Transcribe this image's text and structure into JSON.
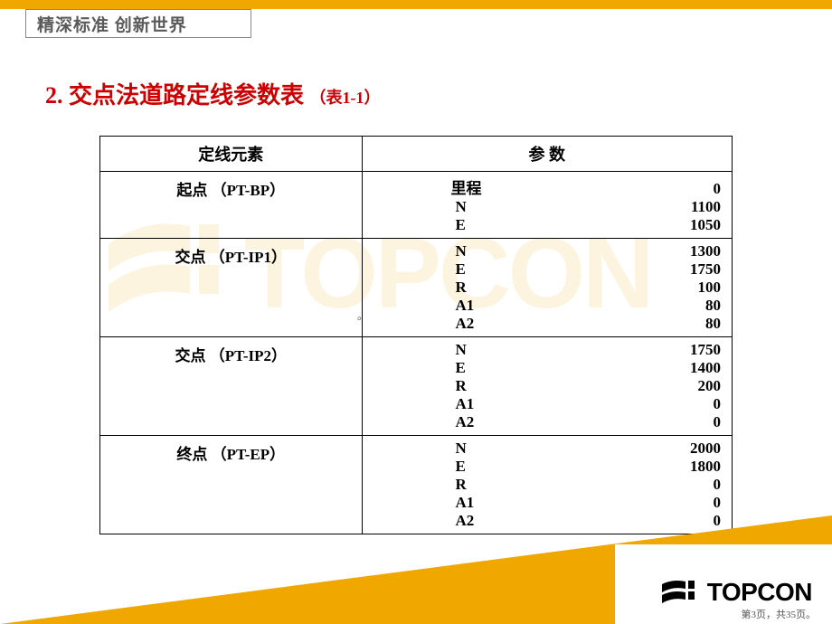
{
  "colors": {
    "brand_orange": "#f0a800",
    "title_red": "#cc0000",
    "border": "#000000",
    "motto_text": "#5a5a5a",
    "page_bg": "#ffffff"
  },
  "motto": "精深标准  创新世界",
  "title": {
    "number": "2.",
    "main": "交点法道路定线参数表",
    "sub": "（表1-1）"
  },
  "table": {
    "headers": {
      "element": "定线元素",
      "params": "参    数"
    },
    "rows": [
      {
        "element": "起点 （PT-BP）",
        "params": [
          {
            "label": "里程",
            "cn": true,
            "value": "0"
          },
          {
            "label": "N",
            "value": "1100"
          },
          {
            "label": "E",
            "value": "1050"
          }
        ]
      },
      {
        "element": "交点 （PT-IP1）",
        "params": [
          {
            "label": "N",
            "value": "1300"
          },
          {
            "label": "E",
            "value": "1750"
          },
          {
            "label": "R",
            "value": "100"
          },
          {
            "label": "A1",
            "value": "80"
          },
          {
            "label": "A2",
            "value": "80"
          }
        ]
      },
      {
        "element": "交点 （PT-IP2）",
        "params": [
          {
            "label": "N",
            "value": "1750"
          },
          {
            "label": "E",
            "value": "1400"
          },
          {
            "label": "R",
            "value": "200"
          },
          {
            "label": "A1",
            "value": "0"
          },
          {
            "label": "A2",
            "value": "0"
          }
        ]
      },
      {
        "element": "终点 （PT-EP）",
        "params": [
          {
            "label": "N",
            "value": "2000"
          },
          {
            "label": "E",
            "value": "1800"
          },
          {
            "label": "R",
            "value": "0"
          },
          {
            "label": "A1",
            "value": "0"
          },
          {
            "label": "A2",
            "value": "0"
          }
        ]
      }
    ]
  },
  "footer": {
    "logo_text": "TOPCON",
    "page_label": "第3页，共35页。"
  }
}
